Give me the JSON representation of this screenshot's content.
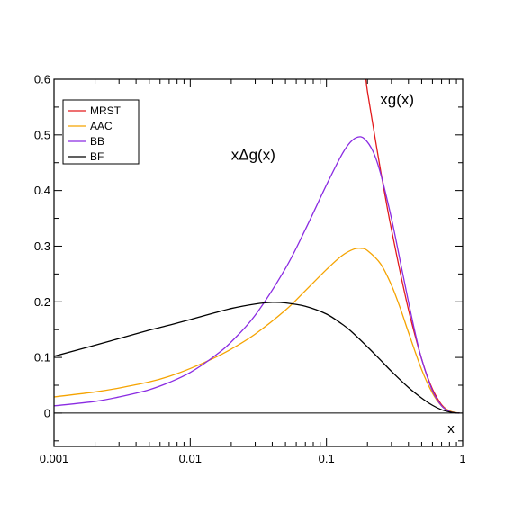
{
  "chart_data": {
    "type": "line",
    "title": "",
    "xlabel": "x",
    "ylabel": "",
    "xscale": "log",
    "xlim": [
      0.001,
      1
    ],
    "ylim": [
      -0.06,
      0.6
    ],
    "grid": false,
    "legend_position": "top-left",
    "x_ticks": [
      {
        "value": 0.001,
        "label": "0.001"
      },
      {
        "value": 0.01,
        "label": "0.01"
      },
      {
        "value": 0.1,
        "label": "0.1"
      },
      {
        "value": 1,
        "label": "1"
      }
    ],
    "y_ticks": [
      {
        "value": 0,
        "label": "0"
      },
      {
        "value": 0.1,
        "label": "0.1"
      },
      {
        "value": 0.2,
        "label": "0.2"
      },
      {
        "value": 0.3,
        "label": "0.3"
      },
      {
        "value": 0.4,
        "label": "0.4"
      },
      {
        "value": 0.5,
        "label": "0.5"
      },
      {
        "value": 0.6,
        "label": "0.6"
      }
    ],
    "annotations": [
      {
        "text": "xg(x)",
        "x": 0.33,
        "y": 0.555
      },
      {
        "text": "xΔg(x)",
        "x": 0.029,
        "y": 0.455
      }
    ],
    "series": [
      {
        "name": "MRST",
        "color": "#e31a1c",
        "x": [
          0.195,
          0.2,
          0.22,
          0.25,
          0.28,
          0.3,
          0.35,
          0.4,
          0.45,
          0.5,
          0.55,
          0.6,
          0.65,
          0.7,
          0.75,
          0.8,
          0.85,
          0.9,
          0.95
        ],
        "y": [
          0.6,
          0.578,
          0.516,
          0.435,
          0.368,
          0.33,
          0.25,
          0.186,
          0.137,
          0.097,
          0.066,
          0.043,
          0.027,
          0.015,
          0.008,
          0.004,
          0.0015,
          0.0004,
          0.0
        ]
      },
      {
        "name": "AAC",
        "color": "#f5a300",
        "x": [
          0.001,
          0.002,
          0.003,
          0.005,
          0.007,
          0.01,
          0.015,
          0.02,
          0.03,
          0.05,
          0.07,
          0.1,
          0.13,
          0.16,
          0.18,
          0.2,
          0.25,
          0.3,
          0.35,
          0.4,
          0.5,
          0.6,
          0.7,
          0.8,
          0.9,
          0.95
        ],
        "y": [
          0.029,
          0.038,
          0.045,
          0.056,
          0.066,
          0.08,
          0.099,
          0.115,
          0.142,
          0.185,
          0.22,
          0.258,
          0.283,
          0.295,
          0.296,
          0.292,
          0.268,
          0.23,
          0.187,
          0.145,
          0.078,
          0.036,
          0.013,
          0.004,
          0.0006,
          0.0
        ]
      },
      {
        "name": "BB",
        "color": "#8a2be2",
        "x": [
          0.001,
          0.002,
          0.003,
          0.005,
          0.007,
          0.01,
          0.015,
          0.02,
          0.03,
          0.05,
          0.07,
          0.1,
          0.13,
          0.15,
          0.17,
          0.19,
          0.22,
          0.25,
          0.3,
          0.35,
          0.4,
          0.45,
          0.5,
          0.6,
          0.7,
          0.8,
          0.9,
          0.95
        ],
        "y": [
          0.013,
          0.021,
          0.029,
          0.042,
          0.055,
          0.073,
          0.102,
          0.128,
          0.176,
          0.26,
          0.33,
          0.41,
          0.465,
          0.487,
          0.496,
          0.493,
          0.47,
          0.43,
          0.35,
          0.27,
          0.2,
          0.142,
          0.097,
          0.04,
          0.013,
          0.003,
          0.0003,
          0.0
        ]
      },
      {
        "name": "BF",
        "color": "#000000",
        "x": [
          0.001,
          0.002,
          0.003,
          0.005,
          0.007,
          0.01,
          0.015,
          0.02,
          0.03,
          0.04,
          0.05,
          0.07,
          0.1,
          0.13,
          0.15,
          0.2,
          0.25,
          0.3,
          0.4,
          0.5,
          0.6,
          0.7,
          0.8,
          0.9,
          0.95
        ],
        "y": [
          0.102,
          0.122,
          0.134,
          0.149,
          0.158,
          0.168,
          0.18,
          0.188,
          0.196,
          0.199,
          0.198,
          0.192,
          0.178,
          0.16,
          0.148,
          0.119,
          0.095,
          0.075,
          0.046,
          0.027,
          0.014,
          0.006,
          0.002,
          0.0003,
          0.0
        ]
      }
    ]
  }
}
